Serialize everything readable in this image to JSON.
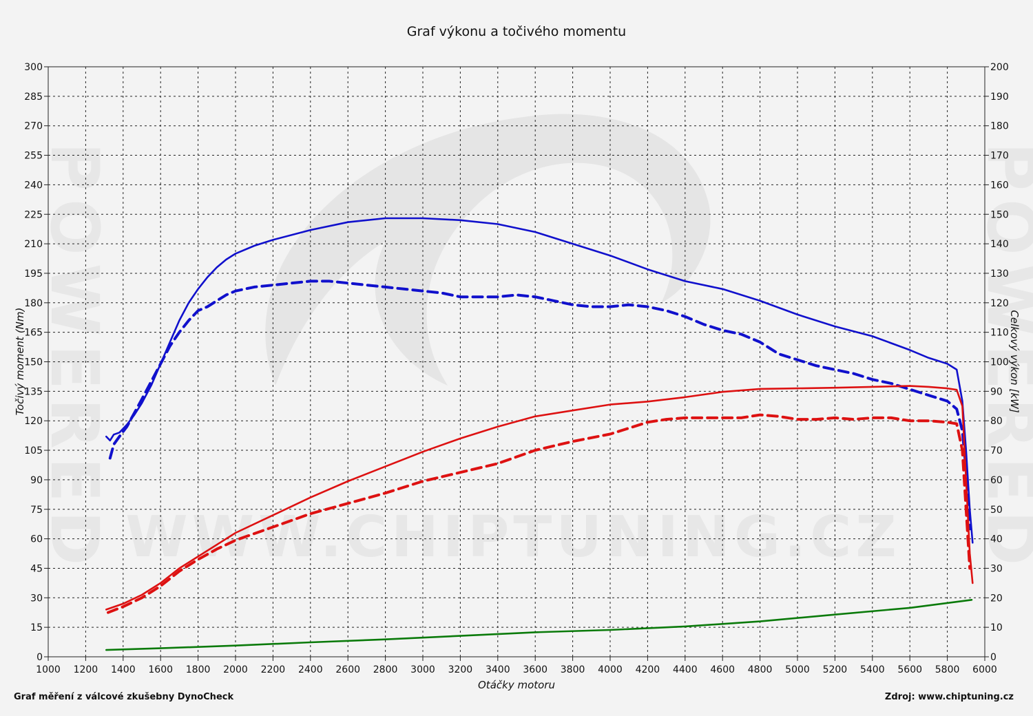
{
  "chart_data": {
    "type": "line",
    "title": "Graf výkonu a točivého momentu",
    "xlabel": "Otáčky motoru",
    "ylabel_left": "Točivý moment (Nm)",
    "ylabel_right": "Celkový výkon [kW]",
    "xlim": [
      1000,
      6000
    ],
    "ylim_left": [
      0,
      300
    ],
    "ylim_right": [
      0,
      200
    ],
    "x_ticks": [
      1000,
      1200,
      1400,
      1600,
      1800,
      2000,
      2200,
      2400,
      2600,
      2800,
      3000,
      3200,
      3400,
      3600,
      3800,
      4000,
      4200,
      4400,
      4600,
      4800,
      5000,
      5200,
      5400,
      5600,
      5800,
      6000
    ],
    "y_left_ticks": [
      0,
      15,
      30,
      45,
      60,
      75,
      90,
      105,
      120,
      135,
      150,
      165,
      180,
      195,
      210,
      225,
      240,
      255,
      270,
      285,
      300
    ],
    "y_right_ticks": [
      0,
      10,
      20,
      30,
      40,
      50,
      60,
      70,
      80,
      90,
      100,
      110,
      120,
      130,
      140,
      150,
      160,
      170,
      180,
      190,
      200
    ],
    "grid": true,
    "series": [
      {
        "axis": "left",
        "color": "#1010cc",
        "dash": false,
        "x": [
          1310,
          1330,
          1350,
          1380,
          1420,
          1460,
          1500,
          1550,
          1600,
          1650,
          1700,
          1750,
          1800,
          1850,
          1900,
          1950,
          2000,
          2100,
          2200,
          2400,
          2600,
          2800,
          3000,
          3200,
          3400,
          3600,
          3800,
          4000,
          4200,
          4400,
          4600,
          4800,
          5000,
          5200,
          5400,
          5600,
          5700,
          5800,
          5850,
          5880,
          5900,
          5920,
          5935
        ],
        "y": [
          112,
          110,
          113,
          114,
          118,
          123,
          129,
          138,
          149,
          160,
          171,
          180,
          187,
          193,
          198,
          202,
          205,
          209,
          212,
          217,
          221,
          223,
          223,
          222,
          220,
          216,
          210,
          204,
          197,
          191,
          187,
          181,
          174,
          168,
          163,
          156,
          152,
          149,
          146,
          130,
          105,
          75,
          58
        ]
      },
      {
        "axis": "left",
        "color": "#1010cc",
        "dash": true,
        "x": [
          1330,
          1350,
          1380,
          1420,
          1460,
          1500,
          1550,
          1600,
          1650,
          1700,
          1750,
          1800,
          1850,
          1900,
          1950,
          2000,
          2100,
          2200,
          2300,
          2400,
          2500,
          2600,
          2700,
          2800,
          2900,
          3000,
          3100,
          3200,
          3300,
          3400,
          3500,
          3600,
          3700,
          3800,
          3900,
          4000,
          4100,
          4200,
          4300,
          4400,
          4500,
          4600,
          4700,
          4800,
          4900,
          5000,
          5100,
          5200,
          5300,
          5400,
          5500,
          5600,
          5700,
          5800,
          5850,
          5880,
          5900,
          5920
        ],
        "y": [
          101,
          108,
          112,
          117,
          124,
          131,
          140,
          149,
          158,
          165,
          171,
          176,
          178,
          181,
          184,
          186,
          188,
          189,
          190,
          191,
          191,
          190,
          189,
          188,
          187,
          186,
          185,
          183,
          183,
          183,
          184,
          183,
          181,
          179,
          178,
          178,
          179,
          178,
          176,
          173,
          169,
          166,
          164,
          160,
          154,
          151,
          148,
          146,
          144,
          141,
          139,
          136,
          133,
          130,
          126,
          115,
          95,
          65
        ]
      },
      {
        "axis": "right",
        "color": "#dd1111",
        "dash": false,
        "x": [
          1310,
          1400,
          1500,
          1600,
          1700,
          1800,
          1900,
          2000,
          2200,
          2400,
          2600,
          2800,
          3000,
          3200,
          3400,
          3600,
          3800,
          4000,
          4200,
          4400,
          4600,
          4800,
          5000,
          5200,
          5400,
          5600,
          5700,
          5800,
          5850,
          5880,
          5900,
          5920,
          5935
        ],
        "y": [
          16,
          18,
          21,
          25,
          30,
          34,
          38,
          42,
          48,
          54,
          59.5,
          64.5,
          69.5,
          74,
          78,
          81.5,
          83.5,
          85.5,
          86.5,
          88,
          89.8,
          90.8,
          91,
          91.2,
          91.5,
          91.8,
          91.5,
          91,
          90.5,
          85,
          60,
          35,
          25
        ]
      },
      {
        "axis": "right",
        "color": "#dd1111",
        "dash": true,
        "x": [
          1320,
          1360,
          1400,
          1500,
          1600,
          1700,
          1800,
          1900,
          2000,
          2200,
          2400,
          2600,
          2800,
          3000,
          3200,
          3400,
          3600,
          3800,
          4000,
          4100,
          4200,
          4300,
          4400,
          4500,
          4600,
          4700,
          4800,
          4900,
          5000,
          5100,
          5200,
          5300,
          5400,
          5500,
          5600,
          5700,
          5800,
          5850,
          5880,
          5900,
          5920
        ],
        "y": [
          15,
          16,
          17,
          20,
          24,
          29,
          33,
          36.5,
          39.5,
          44,
          48.5,
          52,
          55.5,
          59.5,
          62.5,
          65.5,
          70,
          73,
          75.5,
          77.5,
          79.5,
          80.5,
          81,
          81,
          81,
          81,
          82,
          81.5,
          80.5,
          80.5,
          81,
          80.5,
          81,
          81,
          80,
          80,
          79.5,
          79,
          70,
          50,
          30
        ]
      },
      {
        "axis": "right",
        "color": "#0a7a0a",
        "dash": false,
        "x": [
          1310,
          1600,
          2000,
          2400,
          2800,
          3200,
          3600,
          4000,
          4400,
          4800,
          5200,
          5600,
          5930
        ],
        "y": [
          2.3,
          2.9,
          3.8,
          4.9,
          5.9,
          7.1,
          8.3,
          9.1,
          10.3,
          12,
          14.3,
          16.6,
          19.3
        ]
      }
    ]
  },
  "footer": {
    "left_text": "Graf měření z válcové zkušebny DynoCheck",
    "right_text": "Zdroj: www.chiptuning.cz"
  },
  "watermark": {
    "text": "WWW.CHIPTUNING.CZ",
    "side_text": "POWERED"
  }
}
